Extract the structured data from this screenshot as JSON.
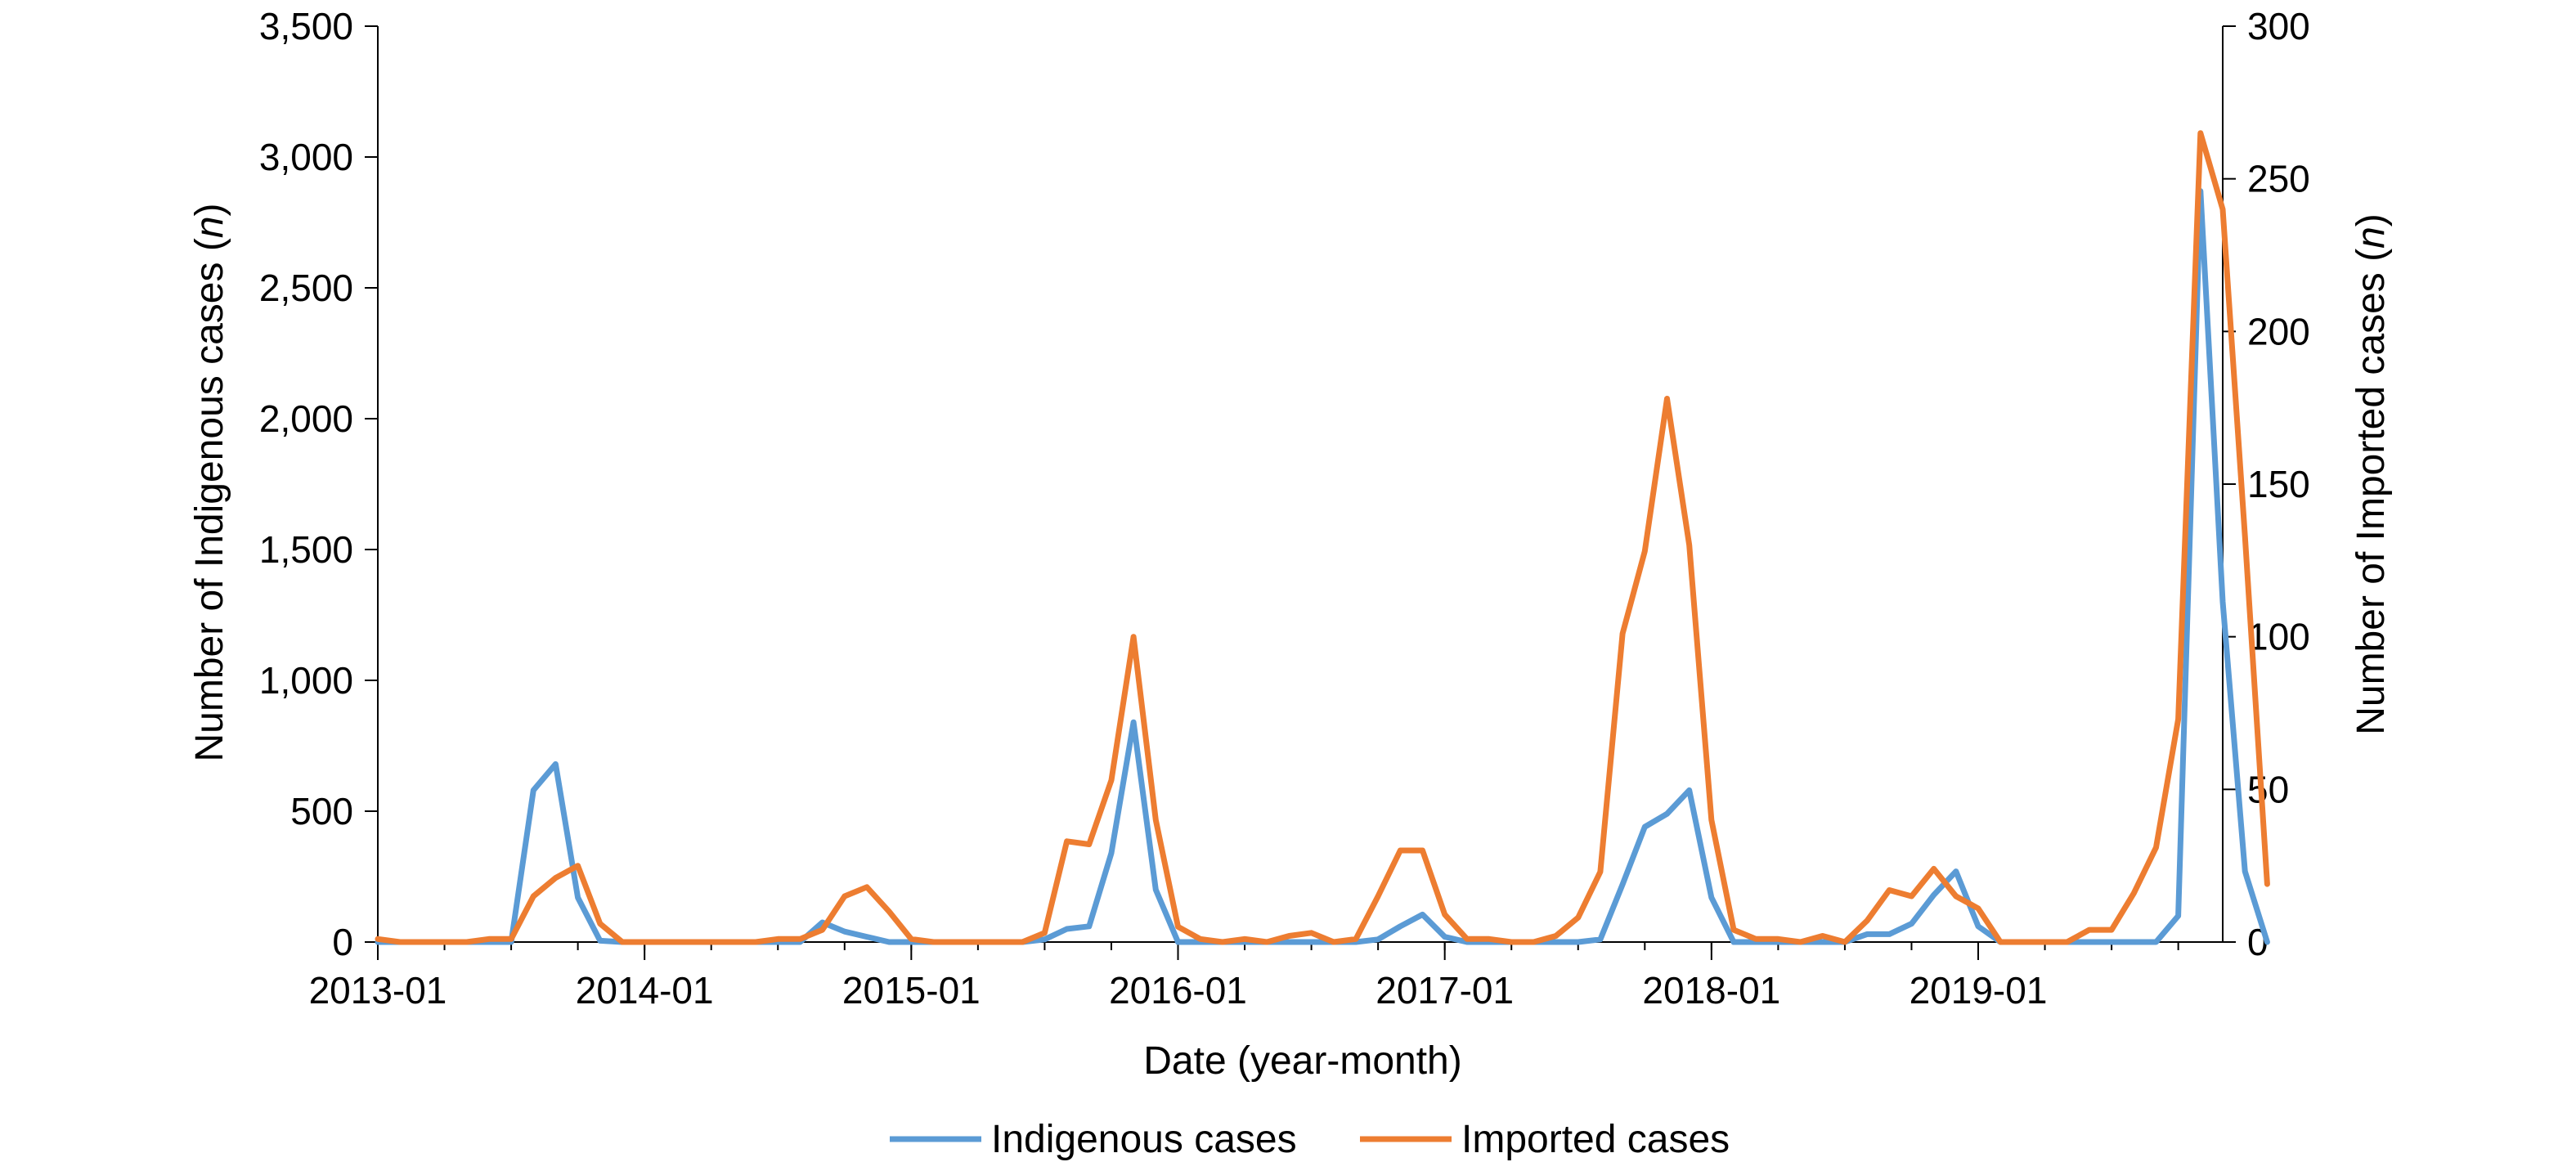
{
  "chart_data": {
    "type": "line",
    "title": "",
    "xlabel": "Date (year-month)",
    "ylabel_left": "Number of Indigenous cases (n)",
    "ylabel_right": "Number of Imported cases (n)",
    "ylim_left": [
      0,
      3500
    ],
    "ylim_right": [
      0,
      300
    ],
    "yticks_left": [
      "0",
      "500",
      "1,000",
      "1,500",
      "2,000",
      "2,500",
      "3,000",
      "3,500"
    ],
    "yticks_right": [
      "0",
      "50",
      "100",
      "150",
      "200",
      "250",
      "300"
    ],
    "xticks": [
      "2013-01",
      "2014-01",
      "2015-01",
      "2016-01",
      "2017-01",
      "2018-01",
      "2019-01"
    ],
    "x_range": [
      "2013-01",
      "2019-12"
    ],
    "grid": false,
    "legend": "bottom",
    "series": [
      {
        "name": "Indigenous cases",
        "axis": "left",
        "color": "#5b9bd5",
        "values": [
          0,
          0,
          0,
          0,
          0,
          0,
          0,
          580,
          680,
          170,
          5,
          0,
          0,
          0,
          0,
          0,
          0,
          0,
          0,
          0,
          75,
          40,
          20,
          0,
          0,
          0,
          0,
          0,
          0,
          0,
          10,
          50,
          60,
          340,
          840,
          200,
          0,
          0,
          0,
          0,
          0,
          0,
          0,
          0,
          0,
          10,
          60,
          105,
          20,
          0,
          0,
          0,
          0,
          0,
          0,
          10,
          220,
          440,
          490,
          580,
          170,
          0,
          0,
          0,
          0,
          0,
          0,
          30,
          30,
          70,
          180,
          270,
          60,
          0,
          0,
          0,
          0,
          0,
          0,
          0,
          0,
          100,
          2870,
          1300,
          270,
          0
        ]
      },
      {
        "name": "Imported cases",
        "axis": "right",
        "color": "#ed7d31",
        "values": [
          1,
          0,
          0,
          0,
          0,
          1,
          1,
          15,
          21,
          25,
          6,
          0,
          0,
          0,
          0,
          0,
          0,
          0,
          1,
          1,
          4,
          15,
          18,
          10,
          1,
          0,
          0,
          0,
          0,
          0,
          3,
          33,
          32,
          53,
          100,
          40,
          5,
          1,
          0,
          1,
          0,
          2,
          3,
          0,
          1,
          15,
          30,
          30,
          9,
          1,
          1,
          0,
          0,
          2,
          8,
          23,
          101,
          128,
          178,
          130,
          40,
          4,
          1,
          1,
          0,
          2,
          0,
          7,
          17,
          15,
          24,
          15,
          11,
          0,
          0,
          0,
          0,
          4,
          4,
          16,
          31,
          73,
          265,
          240,
          133,
          19
        ]
      }
    ]
  }
}
